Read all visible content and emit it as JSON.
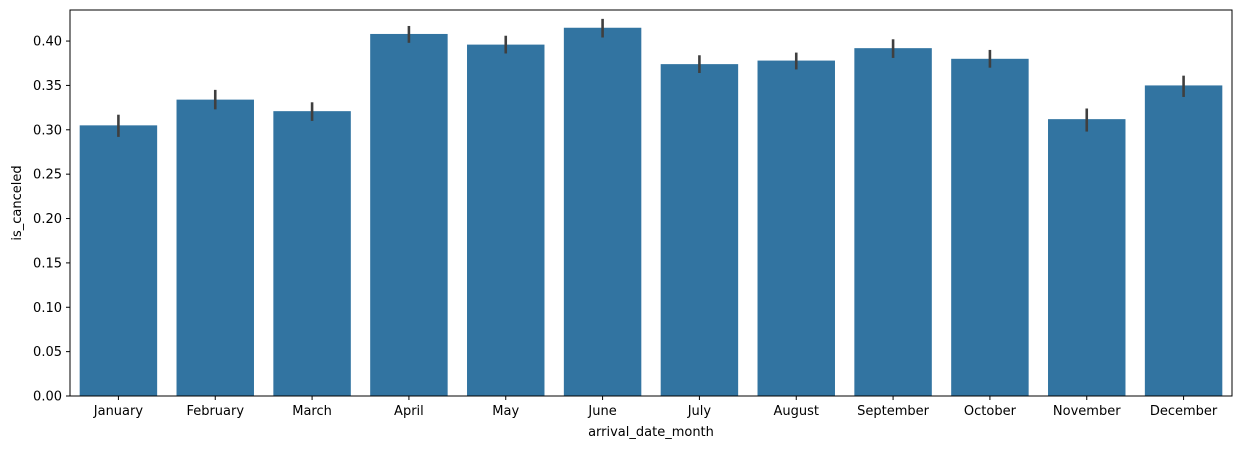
{
  "chart_data": {
    "type": "bar",
    "title": "",
    "xlabel": "arrival_date_month",
    "ylabel": "is_canceled",
    "categories": [
      "January",
      "February",
      "March",
      "April",
      "May",
      "June",
      "July",
      "August",
      "September",
      "October",
      "November",
      "December"
    ],
    "values": [
      0.305,
      0.334,
      0.321,
      0.408,
      0.396,
      0.415,
      0.374,
      0.378,
      0.392,
      0.38,
      0.312,
      0.35
    ],
    "error_low": [
      0.292,
      0.323,
      0.31,
      0.398,
      0.386,
      0.404,
      0.364,
      0.368,
      0.381,
      0.37,
      0.298,
      0.337
    ],
    "error_high": [
      0.317,
      0.345,
      0.331,
      0.417,
      0.406,
      0.425,
      0.384,
      0.387,
      0.402,
      0.39,
      0.324,
      0.361
    ],
    "ylim": [
      0,
      0.435
    ],
    "yticks": [
      "0.00",
      "0.05",
      "0.10",
      "0.15",
      "0.20",
      "0.25",
      "0.30",
      "0.35",
      "0.40"
    ],
    "grid": false,
    "colors": {
      "bar": "#3274a1",
      "error": "#3f3f3f",
      "axis": "#000000"
    }
  }
}
